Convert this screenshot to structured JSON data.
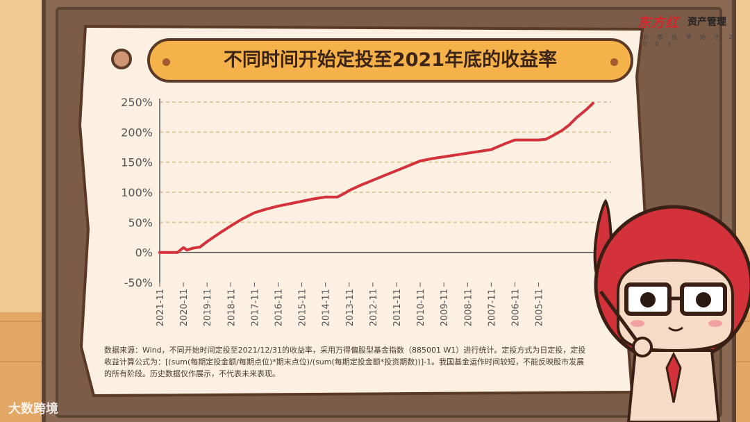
{
  "header": {
    "title": "不同时间开始定投至2021年底的收益率"
  },
  "logo": {
    "brand": "东方红",
    "name": "资产管理",
    "sub": "价 值 投 资 始 于 2 0 0 5"
  },
  "note": "数据来源：Wind，不同开始时间定投至2021/12/31的收益率，采用万得偏股型基金指数（885001 W1）进行统计。定投方式为日定投，定投收益计算公式为：[(sum(每期定投金额/每期点位)*期末点位)/(sum(每期定投金额*投资期数))]-1。我国基金运作时间较短，不能反映股市发展的所有阶段。历史数据仅作展示，不代表未来表现。",
  "watermark": "大数跨境",
  "colors": {
    "line": "#d4323a",
    "grid": "#e0c89a",
    "axis": "#555555"
  },
  "chart_data": {
    "type": "line",
    "title": "不同时间开始定投至2021年底的收益率",
    "xlabel": "",
    "ylabel": "",
    "ylim": [
      -50,
      250
    ],
    "yticks": [
      "250%",
      "200%",
      "150%",
      "100%",
      "50%",
      "0%",
      "-50%"
    ],
    "ytick_values": [
      250,
      200,
      150,
      100,
      50,
      0,
      -50
    ],
    "categories": [
      "2021-11",
      "2020-11",
      "2019-11",
      "2018-11",
      "2017-11",
      "2016-11",
      "2015-11",
      "2014-11",
      "2013-11",
      "2012-11",
      "2011-11",
      "2010-11",
      "2009-11",
      "2008-11",
      "2007-11",
      "2006-11",
      "2005-11"
    ],
    "grid": true,
    "series": [
      {
        "x": [
          0,
          0.25,
          0.5,
          0.75,
          1.0,
          1.15,
          1.4,
          1.7,
          2.0,
          2.3,
          2.6,
          3.0,
          3.5,
          4.0,
          4.5,
          5.0,
          5.5,
          6.0,
          6.5,
          7.0,
          7.3,
          7.5,
          7.8,
          8.0,
          8.5,
          9.0,
          9.5,
          10.0,
          10.5,
          11.0,
          11.5,
          12.0,
          12.5,
          13.0,
          13.5,
          14.0,
          14.3,
          14.6,
          15.0,
          15.5,
          16.0,
          16.3,
          16.6,
          17.0,
          17.3,
          17.6,
          18.0,
          18.3
        ],
        "values": [
          0,
          0,
          0,
          0,
          8,
          4,
          7,
          9,
          18,
          26,
          34,
          44,
          56,
          66,
          72,
          77,
          81,
          85,
          89,
          92,
          92,
          92,
          98,
          103,
          112,
          120,
          128,
          136,
          144,
          152,
          156,
          159,
          162,
          165,
          168,
          171,
          176,
          181,
          187,
          187,
          187,
          188,
          194,
          203,
          212,
          224,
          237,
          248
        ]
      }
    ]
  }
}
